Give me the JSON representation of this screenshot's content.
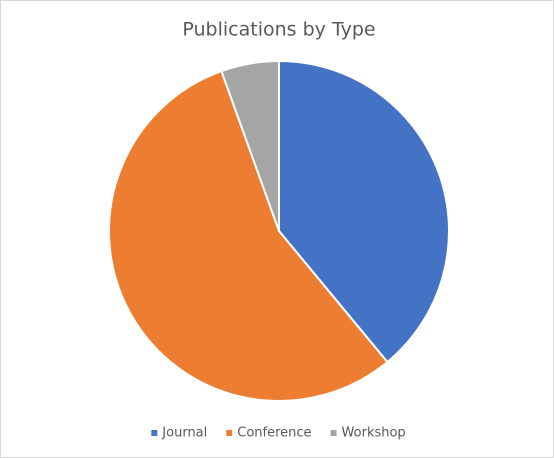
{
  "chart_data": {
    "type": "pie",
    "title": "Publications by Type",
    "categories": [
      "Journal",
      "Conference",
      "Workshop"
    ],
    "values": [
      39,
      55.5,
      5.5
    ],
    "colors": [
      "#4472c4",
      "#ed7d31",
      "#a5a5a5"
    ],
    "legend": "bottom"
  }
}
